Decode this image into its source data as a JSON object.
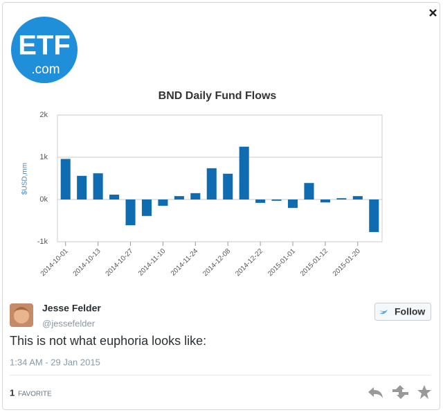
{
  "logo": {
    "main": "ETF",
    "sub": ".com"
  },
  "chart_data": {
    "type": "bar",
    "title": "BND Daily Fund Flows",
    "y_label": "$USD,mm",
    "categories": [
      "2014-10-01",
      null,
      "2014-10-13",
      null,
      "2014-10-27",
      null,
      "2014-11-10",
      null,
      "2014-11-24",
      null,
      "2014-12-08",
      null,
      "2014-12-22",
      null,
      "2015-01-01",
      null,
      "2015-01-12",
      null,
      "2015-01-20",
      null
    ],
    "values": [
      960,
      560,
      620,
      115,
      -610,
      -390,
      -150,
      80,
      150,
      740,
      610,
      1250,
      -80,
      -30,
      -200,
      390,
      -70,
      30,
      80,
      -770
    ],
    "color": "#0f6cb0",
    "ylim": [
      -1000,
      2000
    ],
    "yticks": [
      {
        "value": -1000,
        "label": "-1k"
      },
      {
        "value": 0,
        "label": "0k"
      },
      {
        "value": 1000,
        "label": "1k"
      },
      {
        "value": 2000,
        "label": "2k"
      }
    ],
    "grid": true
  },
  "tweet": {
    "name": "Jesse Felder",
    "handle": "@jessefelder",
    "follow": "Follow",
    "text": "This is not what euphoria looks like:",
    "timestamp": "1:34 AM - 29 Jan 2015",
    "favorites_count": "1",
    "favorites_label": "FAVORITE"
  }
}
